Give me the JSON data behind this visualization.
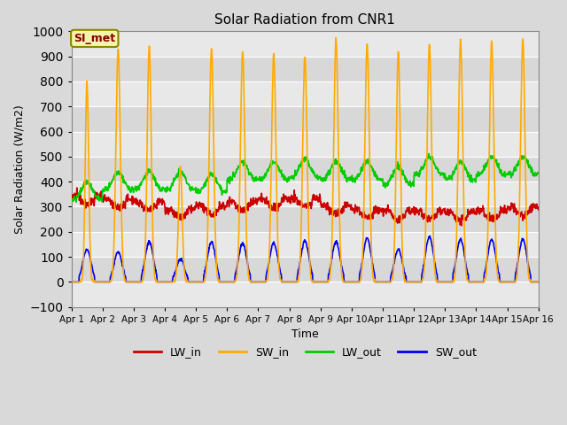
{
  "title": "Solar Radiation from CNR1",
  "xlabel": "Time",
  "ylabel": "Solar Radiation (W/m2)",
  "ylim": [
    -100,
    1000
  ],
  "xlim": [
    0,
    15
  ],
  "x_tick_labels": [
    "Apr 1",
    "Apr 2",
    "Apr 3",
    "Apr 4",
    "Apr 5",
    "Apr 6",
    "Apr 7",
    "Apr 8",
    "Apr 9",
    "Apr 10",
    "Apr 11",
    "Apr 12",
    "Apr 13",
    "Apr 14",
    "Apr 15",
    "Apr 16"
  ],
  "fig_bg_color": "#d9d9d9",
  "plot_bg_color": "#e8e8e8",
  "band_colors": [
    "#e8e8e8",
    "#d8d8d8"
  ],
  "legend_label": "SI_met",
  "legend_bg": "#f5f5aa",
  "legend_border": "#888800",
  "series_colors": {
    "LW_in": "#cc0000",
    "SW_in": "#ffaa00",
    "LW_out": "#00cc00",
    "SW_out": "#0000ee"
  },
  "line_width": 1.2,
  "yticks": [
    -100,
    0,
    100,
    200,
    300,
    400,
    500,
    600,
    700,
    800,
    900,
    1000
  ],
  "grid_color": "#ffffff",
  "sw_peaks": [
    800,
    930,
    940,
    460,
    930,
    920,
    910,
    900,
    970,
    950,
    920,
    950,
    960,
    960,
    970
  ],
  "sw_widths": [
    0.055,
    0.07,
    0.065,
    0.06,
    0.07,
    0.07,
    0.07,
    0.07,
    0.07,
    0.07,
    0.065,
    0.07,
    0.07,
    0.07,
    0.07
  ],
  "lw_out_peaks": [
    400,
    440,
    440,
    440,
    430,
    480,
    480,
    490,
    480,
    480,
    460,
    500,
    480,
    500,
    500
  ],
  "sw_out_peaks": [
    130,
    120,
    160,
    90,
    160,
    155,
    155,
    165,
    160,
    175,
    130,
    180,
    170,
    170,
    170
  ],
  "lw_in_base": [
    345,
    330,
    320,
    290,
    305,
    320,
    330,
    335,
    305,
    290,
    285,
    285,
    280,
    285,
    300
  ]
}
